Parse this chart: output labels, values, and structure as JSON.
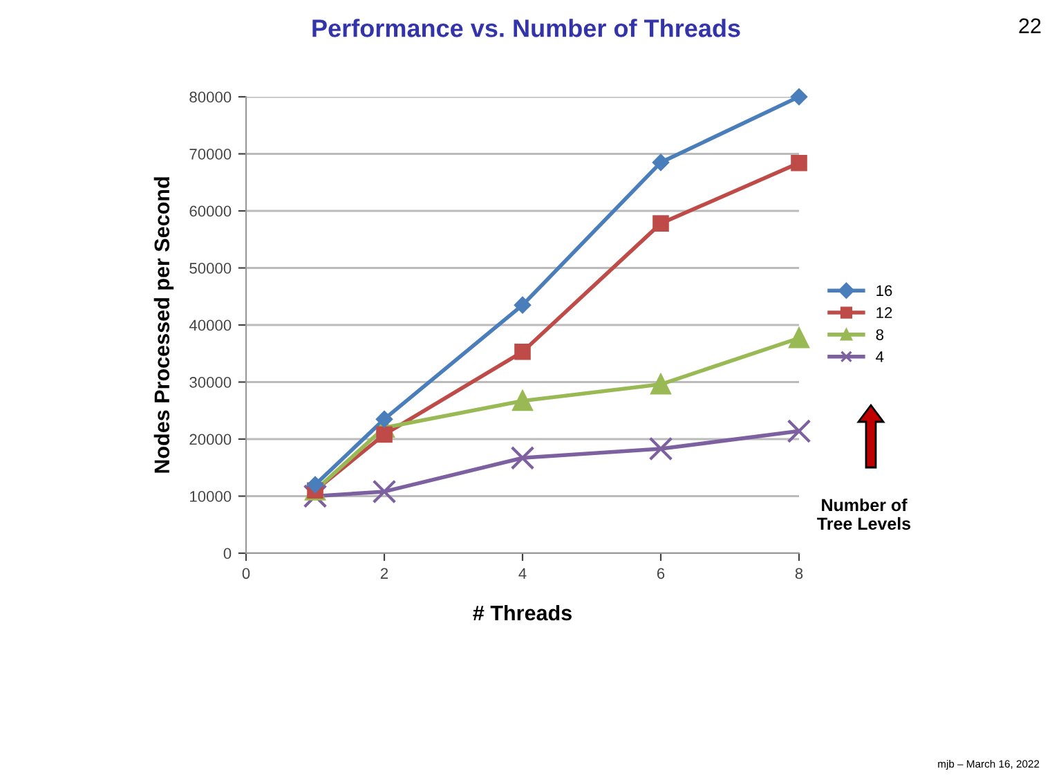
{
  "chart_data": {
    "type": "line",
    "title": "Performance vs. Number of Threads",
    "xlabel": "# Threads",
    "ylabel": "Nodes Processed per Second",
    "x": [
      1,
      2,
      4,
      6,
      8
    ],
    "series": [
      {
        "name": "16",
        "color": "#4a7ebb",
        "marker": "diamond",
        "values": [
          12000,
          23500,
          43500,
          68500,
          80000
        ]
      },
      {
        "name": "12",
        "color": "#be4b48",
        "marker": "square",
        "values": [
          11000,
          20800,
          35300,
          57800,
          68400
        ]
      },
      {
        "name": "8",
        "color": "#98b954",
        "marker": "triangle",
        "values": [
          11000,
          22000,
          26700,
          29600,
          37700
        ]
      },
      {
        "name": "4",
        "color": "#7d60a0",
        "marker": "cross",
        "values": [
          10000,
          10800,
          16700,
          18300,
          21400
        ]
      }
    ],
    "xlim": [
      0,
      8
    ],
    "xticks": [
      0,
      2,
      4,
      6,
      8
    ],
    "ylim": [
      0,
      80000
    ],
    "yticks": [
      0,
      10000,
      20000,
      30000,
      40000,
      50000,
      60000,
      70000,
      80000
    ],
    "grid": "y",
    "legend": "right",
    "annotations": [
      "Number of\nTree Levels",
      "22",
      "mjb – March 16, 2022"
    ]
  }
}
